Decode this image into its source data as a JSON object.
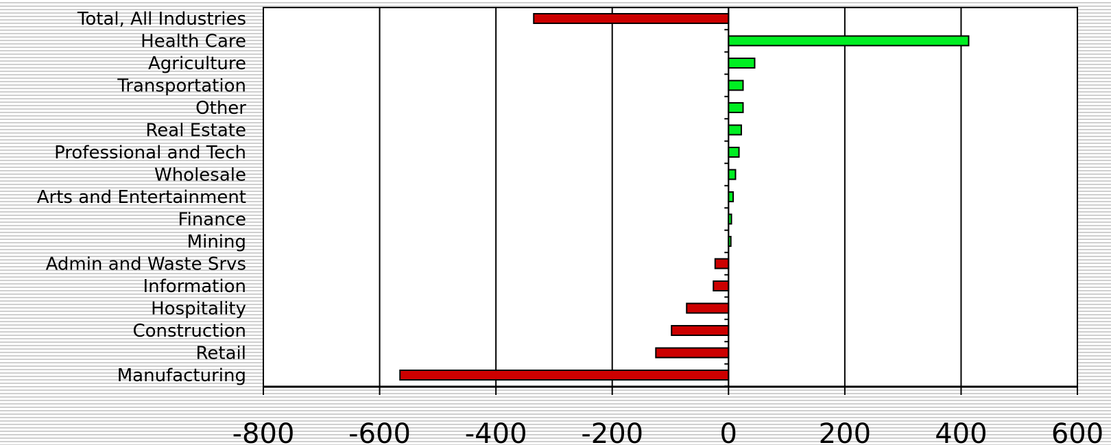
{
  "chart_data": {
    "type": "bar",
    "orientation": "horizontal",
    "categories": [
      "Total, All Industries",
      "Health Care",
      "Agriculture",
      "Transportation",
      "Other",
      "Real Estate",
      "Professional and Tech",
      "Wholesale",
      "Arts and Entertainment",
      "Finance",
      "Mining",
      "Admin and Waste Srvs",
      "Information",
      "Hospitality",
      "Construction",
      "Retail",
      "Manufacturing"
    ],
    "values": [
      -335,
      413,
      45,
      25,
      25,
      22,
      18,
      12,
      8,
      5,
      4,
      -23,
      -26,
      -72,
      -98,
      -125,
      -565
    ],
    "title": "",
    "xlabel": "",
    "ylabel": "",
    "xlim": [
      -800,
      600
    ],
    "x_ticks": [
      "-800",
      "-600",
      "-400",
      "-200",
      "0",
      "200",
      "400",
      "600"
    ],
    "grid": "vertical",
    "legend": "none",
    "colors": {
      "positive": "#00ee22",
      "negative": "#cc0000",
      "outline": "#000000"
    }
  }
}
